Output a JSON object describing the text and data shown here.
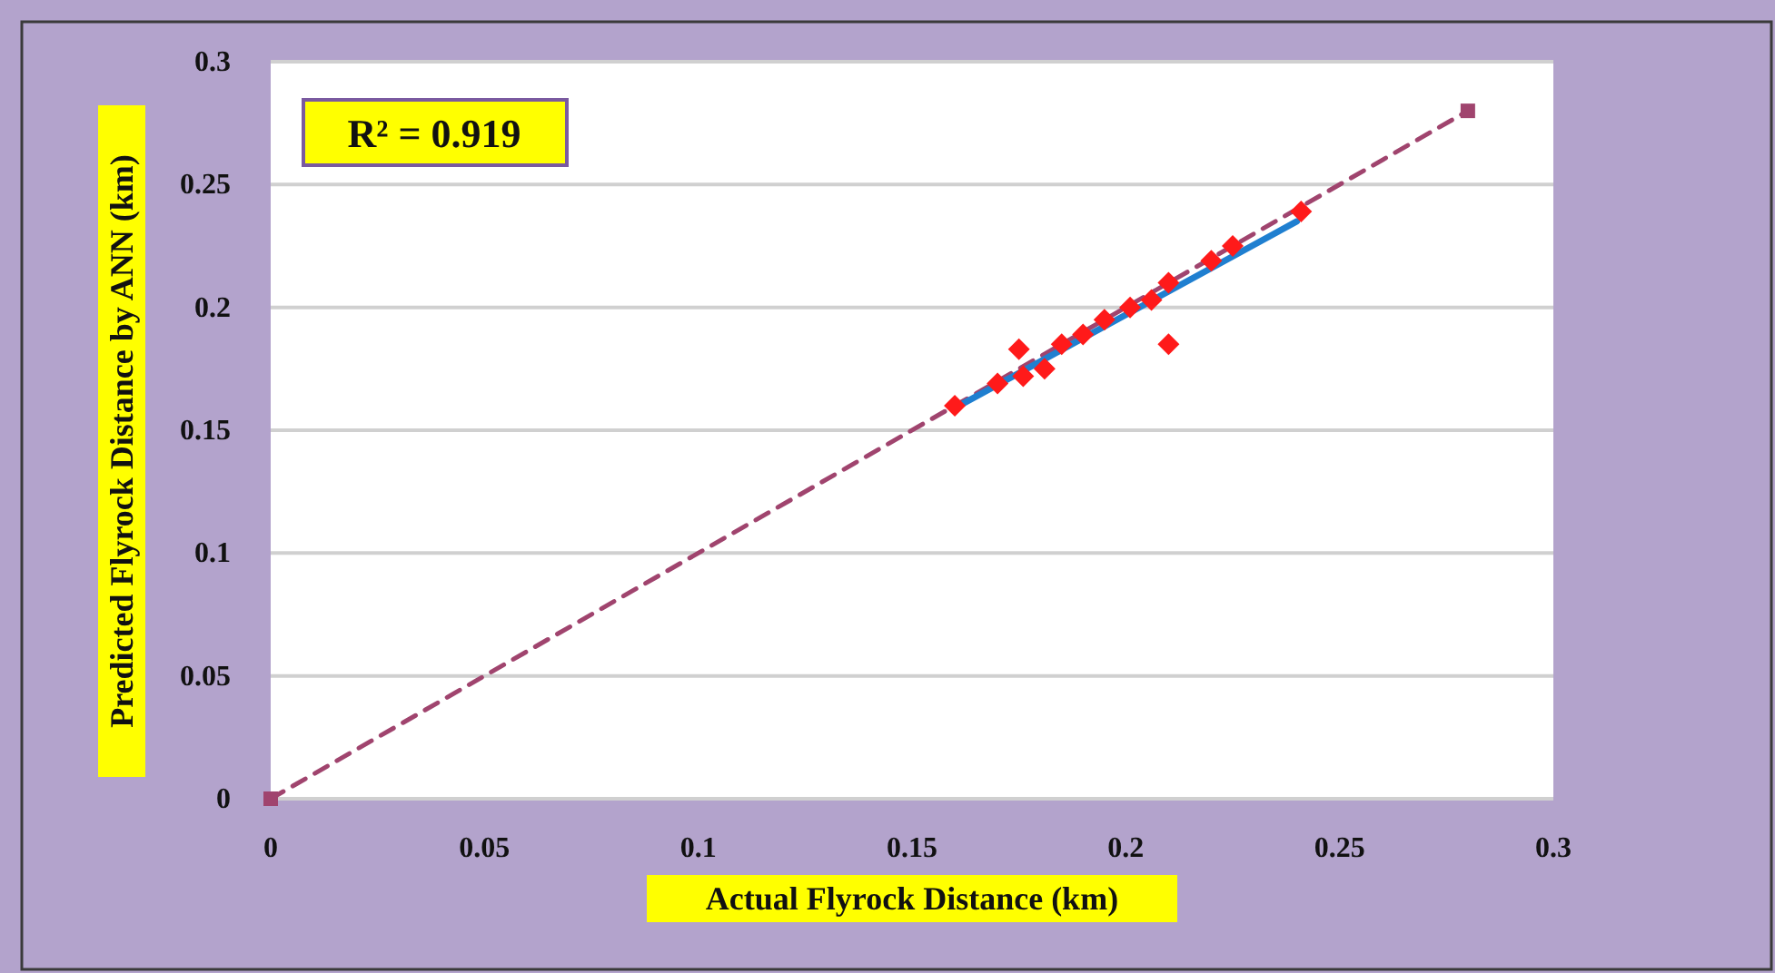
{
  "chart_data": {
    "type": "scatter",
    "xlabel": "Actual Flyrock Distance (km)",
    "ylabel": "Predicted Flyrock Distance by ANN (km)",
    "annotations": [
      "R² = 0.919"
    ],
    "xlim": [
      0,
      0.3
    ],
    "ylim": [
      0,
      0.3
    ],
    "xticks": [
      0,
      0.05,
      0.1,
      0.15,
      0.2,
      0.25,
      0.3
    ],
    "yticks": [
      0,
      0.05,
      0.1,
      0.15,
      0.2,
      0.25,
      0.3
    ],
    "grid": "y",
    "series": [
      {
        "type": "line",
        "color": "#a0446e",
        "x": [
          0,
          0.28
        ],
        "values": [
          0,
          0.28
        ],
        "marker": "square",
        "line_style": "dashed"
      },
      {
        "type": "line",
        "color": "#1f7fd0",
        "x": [
          0.16,
          0.24
        ],
        "values": [
          0.159,
          0.235
        ],
        "marker": "none",
        "line_style": "solid"
      },
      {
        "color": "#ff1a1a",
        "x": [
          0.16,
          0.17,
          0.175,
          0.176,
          0.181,
          0.185,
          0.19,
          0.195,
          0.201,
          0.206,
          0.21,
          0.21,
          0.22,
          0.225,
          0.241
        ],
        "values": [
          0.16,
          0.169,
          0.183,
          0.172,
          0.175,
          0.185,
          0.189,
          0.195,
          0.2,
          0.203,
          0.21,
          0.185,
          0.219,
          0.225,
          0.239
        ],
        "marker": "diamond"
      }
    ]
  }
}
